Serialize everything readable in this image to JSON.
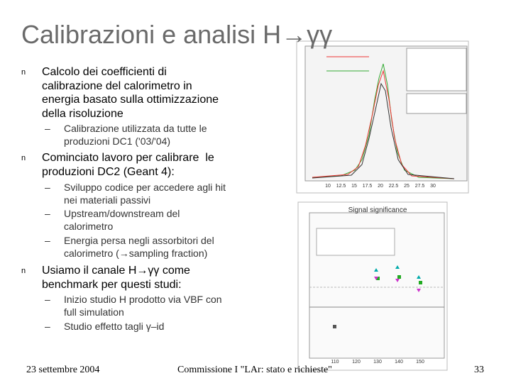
{
  "title": "Calibrazioni e analisi H→γγ",
  "bullets": [
    {
      "marker": "n",
      "lines": [
        "Calcolo dei coefficienti di",
        "calibrazione del calorimetro in",
        "energia basato sulla ottimizzazione",
        "della risoluzione"
      ],
      "sub": [
        {
          "marker": "–",
          "lines": [
            "Calibrazione utilizzata da tutte le",
            "produzioni DC1 ('03/'04)"
          ]
        }
      ]
    },
    {
      "marker": "n",
      "lines": [
        "Cominciato lavoro per calibrare  le",
        "produzioni DC2 (Geant 4):"
      ],
      "sub": [
        {
          "marker": "–",
          "lines": [
            "Sviluppo codice per accedere agli hit",
            "nei materiali passivi"
          ]
        },
        {
          "marker": "–",
          "lines": [
            "Upstream/downstream del",
            "calorimetro"
          ]
        },
        {
          "marker": "–",
          "lines": [
            "Energia persa negli assorbitori del",
            "calorimetro (→sampling fraction)"
          ]
        }
      ]
    },
    {
      "marker": "n",
      "lines": [
        "Usiamo il canale H→γγ come",
        "benchmark per questi studi:"
      ],
      "sub": [
        {
          "marker": "–",
          "lines": [
            "Inizio studio H prodotto via VBF con",
            "full simulation"
          ]
        },
        {
          "marker": "–",
          "lines": [
            "Studio effetto tagli γ–id"
          ]
        }
      ]
    }
  ],
  "figures": {
    "histogram": {
      "x_tick_labels": [
        "10",
        "12.5",
        "15",
        "17.5",
        "20",
        "22.5",
        "25",
        "27.5",
        "30"
      ]
    },
    "significance": {
      "title": "Signal significance",
      "x_tick_labels": [
        "110",
        "120",
        "130",
        "140",
        "150"
      ]
    }
  },
  "footer": {
    "date": "23 settembre 2004",
    "center": "Commissione I \"LAr: stato e richieste\"",
    "page": "33"
  }
}
